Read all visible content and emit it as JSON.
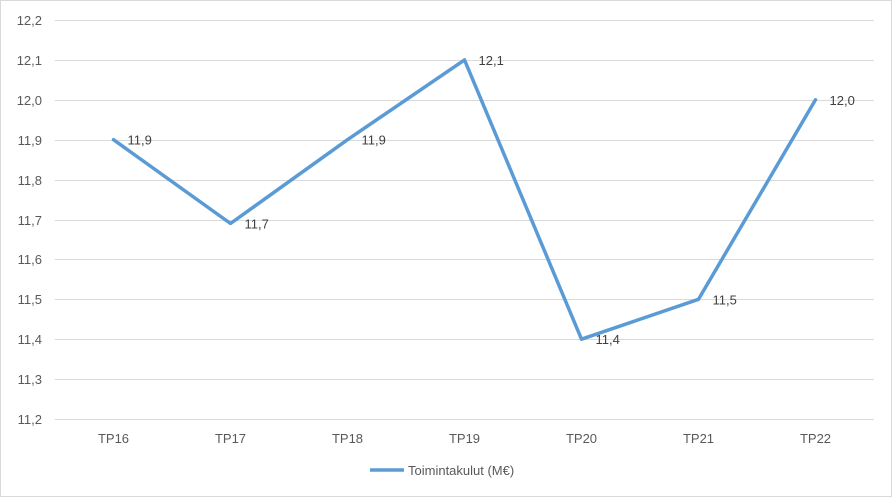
{
  "chart_data": {
    "type": "line",
    "categories": [
      "TP16",
      "TP17",
      "TP18",
      "TP19",
      "TP20",
      "TP21",
      "TP22"
    ],
    "series": [
      {
        "name": "Toimintakulut (M€)",
        "values": [
          11.9,
          11.69,
          11.9,
          12.1,
          11.4,
          11.5,
          12.0
        ],
        "data_labels": [
          "11,9",
          "11,7",
          "11,9",
          "12,1",
          "11,4",
          "11,5",
          "12,0"
        ],
        "color": "#5b9bd5"
      }
    ],
    "ylim": [
      11.2,
      12.2
    ],
    "yticks": [
      "11,2",
      "11,3",
      "11,4",
      "11,5",
      "11,6",
      "11,7",
      "11,8",
      "11,9",
      "12,0",
      "12,1",
      "12,2"
    ],
    "grid": true,
    "legend_position": "bottom",
    "gridline_color": "#d9d9d9"
  }
}
